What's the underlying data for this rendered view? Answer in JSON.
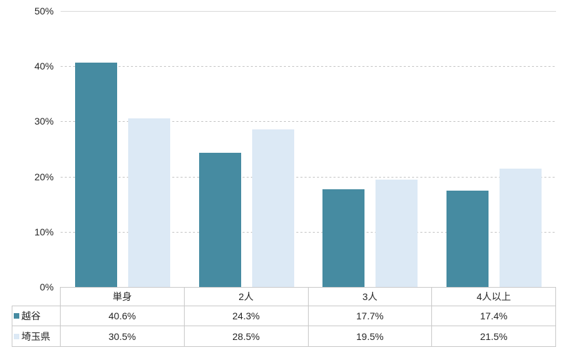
{
  "chart_data": {
    "type": "bar",
    "categories": [
      "単身",
      "2人",
      "3人",
      "4人以上"
    ],
    "series": [
      {
        "name": "越谷",
        "color": "#468BA1",
        "values": [
          40.6,
          24.3,
          17.7,
          17.4
        ]
      },
      {
        "name": "埼玉県",
        "color": "#DCE9F5",
        "values": [
          30.5,
          28.5,
          19.5,
          21.5
        ]
      }
    ],
    "title": "",
    "xlabel": "",
    "ylabel": "",
    "ylim": [
      0,
      50
    ],
    "ytick_step": 10,
    "ytick_labels": [
      "0%",
      "10%",
      "20%",
      "30%",
      "40%",
      "50%"
    ],
    "grid": true,
    "gridline_color": "#c6c6c6",
    "top_gridline_color": "#d9d9d9",
    "legend_position": "table-left"
  },
  "table": {
    "corner_label": "",
    "column_headers": [
      "単身",
      "2人",
      "3人",
      "4人以上"
    ],
    "rows": [
      {
        "legend": "越谷",
        "swatch_color": "#468BA1",
        "cells": [
          "40.6%",
          "24.3%",
          "17.7%",
          "17.4%"
        ]
      },
      {
        "legend": "埼玉県",
        "swatch_color": "#DCE9F5",
        "cells": [
          "30.5%",
          "28.5%",
          "19.5%",
          "21.5%"
        ]
      }
    ],
    "border_color": "#c9c9c9"
  }
}
